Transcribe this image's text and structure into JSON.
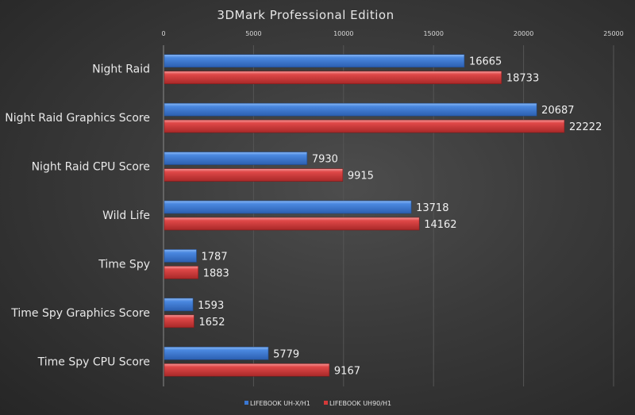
{
  "chart_data": {
    "type": "bar",
    "orientation": "horizontal",
    "title": "3DMark Professional Edition",
    "categories": [
      "Night Raid",
      "Night Raid Graphics Score",
      "Night Raid CPU Score",
      "Wild Life",
      "Time Spy",
      "Time Spy Graphics Score",
      "Time Spy CPU Score"
    ],
    "series": [
      {
        "name": "LIFEBOOK UH-X/H1",
        "color": "#3a78d4",
        "values": [
          16665,
          20687,
          7930,
          13718,
          1787,
          1593,
          5779
        ]
      },
      {
        "name": "LIFEBOOK UH90/H1",
        "color": "#d43a3a",
        "values": [
          18733,
          22222,
          9915,
          14162,
          1883,
          1652,
          9167
        ]
      }
    ],
    "xlim": [
      0,
      25000
    ],
    "xticks": [
      "0",
      "5000",
      "10000",
      "15000",
      "20000",
      "25000"
    ],
    "xaxis_position": "top",
    "grid": true,
    "legend_position": "bottom"
  }
}
